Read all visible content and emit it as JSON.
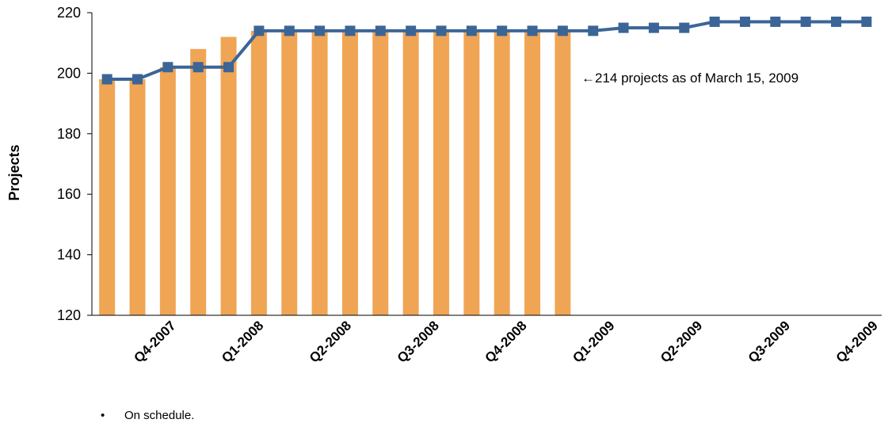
{
  "chart_data": {
    "type": "bar",
    "ylabel": "Projects",
    "ylim": [
      120,
      220
    ],
    "yticks": [
      120,
      140,
      160,
      180,
      200,
      220
    ],
    "grid": false,
    "x_tick_labels": [
      "Q4-2007",
      "Q1-2008",
      "Q2-2008",
      "Q3-2008",
      "Q4-2008",
      "Q1-2009",
      "Q2-2009",
      "Q3-2009",
      "Q4-2009"
    ],
    "series": [
      {
        "type": "bar",
        "color": "#F0A555",
        "values": [
          198,
          198,
          202,
          208,
          212,
          214,
          214,
          214,
          214,
          214,
          214,
          214,
          214,
          214,
          214,
          214
        ]
      },
      {
        "type": "line",
        "color": "#3B6597",
        "marker": "square",
        "values": [
          198,
          198,
          202,
          202,
          202,
          214,
          214,
          214,
          214,
          214,
          214,
          214,
          214,
          214,
          214,
          214,
          214,
          215,
          215,
          215,
          217,
          217,
          217,
          217,
          217,
          217
        ]
      }
    ],
    "annotation": "←214 projects as of March 15, 2009"
  },
  "notes": {
    "bullet_symbol": "•",
    "bullet_text": "On schedule."
  }
}
